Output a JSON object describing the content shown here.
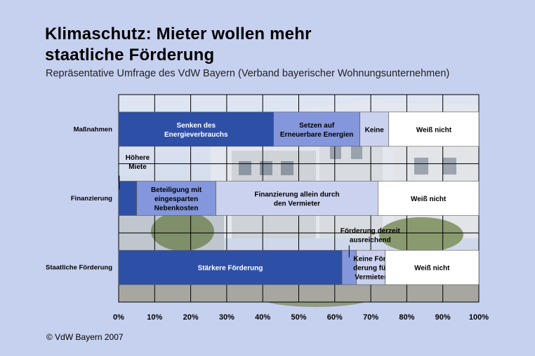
{
  "title_lines": [
    "Klimaschutz: Mieter wollen mehr",
    "staatliche Förderung"
  ],
  "subtitle": "Repräsentative Umfrage des VdW Bayern (Verband bayerischer Wohnungsunternehmen)",
  "footer": "© VdW Bayern 2007",
  "chart_data": {
    "type": "bar",
    "orientation": "horizontal",
    "stacked": true,
    "percent_stacked": true,
    "categories": [
      "Maßnahmen",
      "Finanzierung",
      "Staatliche Förderung"
    ],
    "xlim": [
      0,
      100
    ],
    "x_ticks": [
      "0%",
      "10%",
      "20%",
      "30%",
      "40%",
      "50%",
      "60%",
      "70%",
      "80%",
      "90%",
      "100%"
    ],
    "grid": true,
    "background": "photo of apartment buildings",
    "segments": [
      [
        {
          "label": [
            "Senken des",
            "Energieverbrauchs"
          ],
          "value": 43,
          "color": "#2e4fa6",
          "text_color": "#ffffff"
        },
        {
          "label": [
            "Setzen auf",
            "Erneuerbare Energien"
          ],
          "value": 24,
          "color": "#8496dc",
          "text_color": "#000000"
        },
        {
          "label": [
            "Keine"
          ],
          "value": 8,
          "color": "#cbd2f0",
          "text_color": "#000000"
        },
        {
          "label": [
            "Weiß nicht"
          ],
          "value": 25,
          "color": "#ffffff",
          "text_color": "#000000"
        }
      ],
      [
        {
          "label": [],
          "value": 5,
          "color": "#2e4fa6",
          "text_color": "#ffffff",
          "callout": [
            "Höhere",
            "Miete"
          ]
        },
        {
          "label": [
            "Beteiligung mit",
            "eingesparten",
            "Nebenkosten"
          ],
          "value": 22,
          "color": "#8496dc",
          "text_color": "#000000"
        },
        {
          "label": [
            "Finanzierung allein durch",
            "den Vermieter"
          ],
          "value": 45,
          "color": "#cbd2f0",
          "text_color": "#000000"
        },
        {
          "label": [
            "Weiß nicht"
          ],
          "value": 28,
          "color": "#ffffff",
          "text_color": "#000000"
        }
      ],
      [
        {
          "label": [
            "Stärkere Förderung"
          ],
          "value": 62,
          "color": "#2e4fa6",
          "text_color": "#ffffff"
        },
        {
          "label": [],
          "value": 4,
          "color": "#8496dc",
          "text_color": "#000000",
          "callout": [
            "Förderung derzeit",
            "ausreichend"
          ]
        },
        {
          "label": [
            "Keine För-",
            "derung für",
            "Vermieter"
          ],
          "value": 8,
          "color": "#cbd2f0",
          "text_color": "#000000"
        },
        {
          "label": [
            "Weiß nicht"
          ],
          "value": 26,
          "color": "#ffffff",
          "text_color": "#000000"
        }
      ]
    ]
  }
}
